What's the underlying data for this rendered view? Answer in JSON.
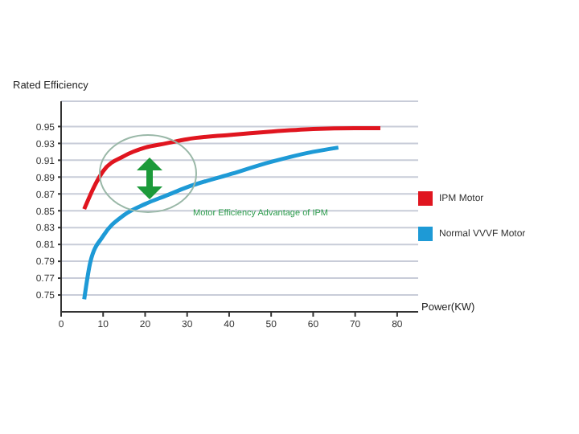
{
  "chart_data": {
    "type": "line",
    "ylabel": "Rated Efficiency",
    "xlabel": "Power(KW)",
    "xlim": [
      0,
      85
    ],
    "xticks": [
      0,
      10,
      20,
      30,
      40,
      50,
      60,
      70,
      80
    ],
    "ylim": [
      0.73,
      0.98
    ],
    "yticks": [
      0.75,
      0.77,
      0.79,
      0.81,
      0.83,
      0.85,
      0.87,
      0.89,
      0.91,
      0.93,
      0.95
    ],
    "grid": "y",
    "legend": "right",
    "marker": "none",
    "line_style": "solid",
    "annotations": [
      "Motor Efficiency Advantage of IPM"
    ],
    "series": [
      {
        "name": "IPM Motor",
        "color": "#e0151f",
        "x": [
          5.5,
          8,
          10,
          15,
          20,
          25,
          30,
          40,
          50,
          60,
          70,
          76
        ],
        "values": [
          0.852,
          0.88,
          0.897,
          0.915,
          0.925,
          0.93,
          0.935,
          0.94,
          0.944,
          0.947,
          0.948,
          0.948
        ]
      },
      {
        "name": "Normal VVVF Motor",
        "color": "#1e9ad6",
        "x": [
          5.5,
          7,
          10,
          15,
          20,
          25,
          30,
          40,
          50,
          60,
          66
        ],
        "values": [
          0.745,
          0.79,
          0.82,
          0.845,
          0.858,
          0.868,
          0.878,
          0.893,
          0.908,
          0.92,
          0.925
        ]
      }
    ]
  }
}
